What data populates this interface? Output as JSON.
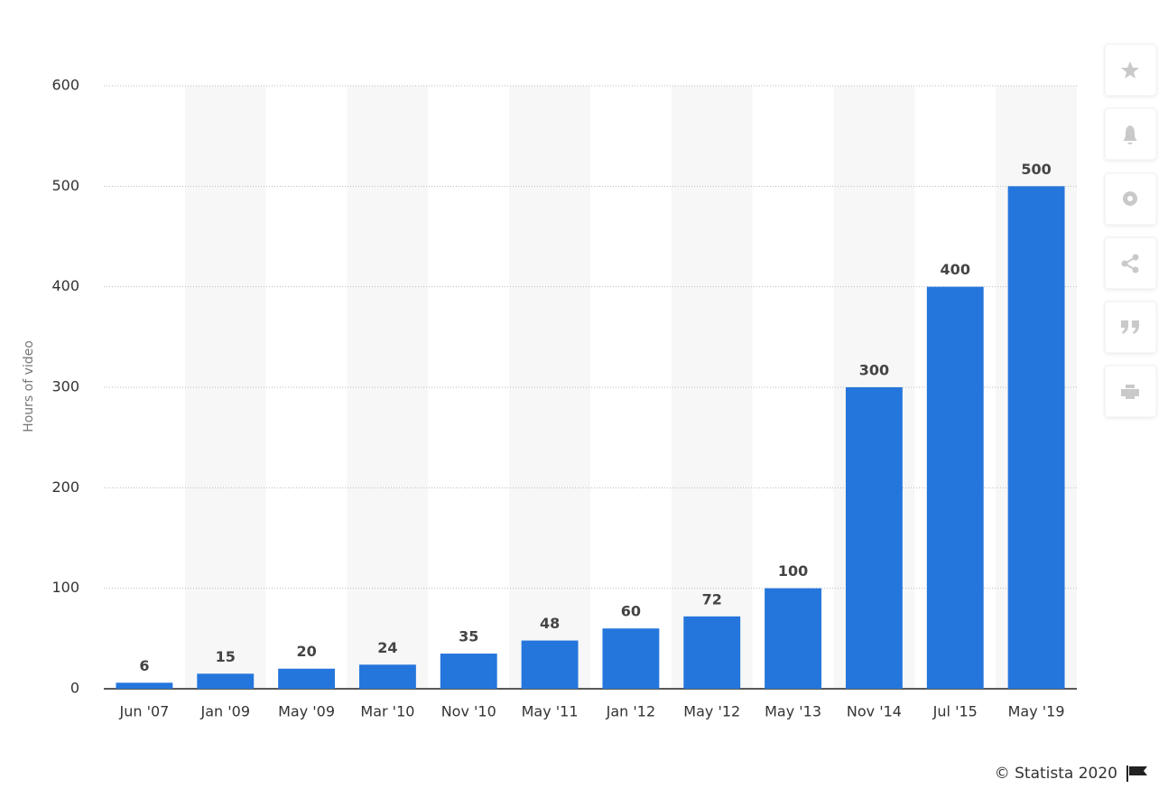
{
  "chart_data": {
    "type": "bar",
    "ylabel": "Hours of video",
    "categories": [
      "Jun '07",
      "Jan '09",
      "May '09",
      "Mar '10",
      "Nov '10",
      "May '11",
      "Jan '12",
      "May '12",
      "May '13",
      "Nov '14",
      "Jul '15",
      "May '19"
    ],
    "values": [
      6,
      15,
      20,
      24,
      35,
      48,
      60,
      72,
      100,
      300,
      400,
      500
    ],
    "color": "#2576dc",
    "ylim": [
      0,
      600
    ],
    "yticks": [
      0,
      100,
      200,
      300,
      400,
      500,
      600
    ],
    "grid": true,
    "credit": "© Statista 2020"
  }
}
